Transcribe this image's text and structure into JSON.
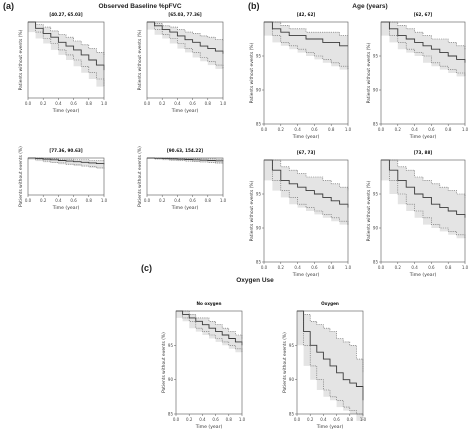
{
  "figure": {
    "panel_a_letter": "(a)",
    "panel_a_title": "Observed Baseline %pFVC",
    "panel_b_letter": "(b)",
    "panel_b_title": "Age (years)",
    "panel_c_letter": "(c)",
    "panel_c_title": "Oxygen Use"
  },
  "colors": {
    "band_fill": "#e4e4e4",
    "band_edge": "#6a6a6a",
    "curve": "#3a3a3a",
    "axis": "#555555"
  },
  "chart_data": [
    {
      "type": "line",
      "title": "[40.27, 65.03]",
      "xlabel": "Time (year)",
      "ylabel": "Patients without events (%)",
      "ylim": [
        40,
        100
      ],
      "yticks": [],
      "xticks": [
        "0.0",
        "0.2",
        "0.4",
        "0.6",
        "0.8",
        "1.0"
      ],
      "series": [
        {
          "x": [
            0,
            0.1,
            0.2,
            0.3,
            0.4,
            0.5,
            0.6,
            0.7,
            0.8,
            0.9,
            1.0
          ],
          "y": [
            100,
            95,
            91,
            88,
            84,
            81,
            78,
            74,
            70,
            66,
            62
          ]
        }
      ],
      "lower": [
        100,
        92,
        87,
        83,
        78,
        74,
        70,
        65,
        60,
        55,
        49
      ],
      "upper": [
        100,
        98,
        96,
        93,
        90,
        88,
        85,
        82,
        79,
        76,
        73
      ]
    },
    {
      "type": "line",
      "title": "[65.03, 77.36]",
      "xlabel": "Time (year)",
      "ylabel": "Patients without events (%)",
      "ylim": [
        40,
        100
      ],
      "yticks": [],
      "xticks": [
        "0.0",
        "0.2",
        "0.4",
        "0.6",
        "0.8",
        "1.0"
      ],
      "series": [
        {
          "x": [
            0,
            0.1,
            0.2,
            0.3,
            0.4,
            0.5,
            0.6,
            0.7,
            0.8,
            0.9,
            1.0
          ],
          "y": [
            100,
            97,
            94,
            92,
            89,
            86,
            84,
            81,
            79,
            77,
            75
          ]
        }
      ],
      "lower": [
        100,
        94,
        90,
        87,
        83,
        79,
        76,
        72,
        69,
        66,
        63
      ],
      "upper": [
        100,
        99,
        97,
        96,
        94,
        92,
        91,
        89,
        88,
        86,
        85
      ]
    },
    {
      "type": "line",
      "title": "[42, 62]",
      "xlabel": "Time (year)",
      "ylabel": "Patients without events (%)",
      "ylim": [
        85,
        100
      ],
      "yticks": [
        95,
        90,
        85
      ],
      "xticks": [
        "0.0",
        "0.2",
        "0.4",
        "0.6",
        "0.8",
        "1.0"
      ],
      "series": [
        {
          "x": [
            0,
            0.1,
            0.2,
            0.3,
            0.4,
            0.5,
            0.6,
            0.7,
            0.8,
            0.9,
            1.0
          ],
          "y": [
            100,
            99,
            98.5,
            98,
            98,
            97.5,
            97.5,
            97,
            97,
            96.5,
            96.5
          ]
        }
      ],
      "lower": [
        100,
        98,
        97,
        96.5,
        96,
        95.5,
        95,
        94.5,
        94,
        93.5,
        93
      ],
      "upper": [
        100,
        100,
        99.5,
        99,
        99,
        98.5,
        98.5,
        98.5,
        98.5,
        98,
        98
      ]
    },
    {
      "type": "line",
      "title": "[62, 67]",
      "xlabel": "Time (year)",
      "ylabel": "Patients without events (%)",
      "ylim": [
        85,
        100
      ],
      "yticks": [
        95,
        90,
        85
      ],
      "xticks": [
        "0.0",
        "0.2",
        "0.4",
        "0.6",
        "0.8",
        "1.0"
      ],
      "series": [
        {
          "x": [
            0,
            0.1,
            0.2,
            0.3,
            0.4,
            0.5,
            0.6,
            0.7,
            0.8,
            0.9,
            1.0
          ],
          "y": [
            100,
            99,
            98,
            97.5,
            97,
            96.5,
            96,
            95.5,
            95,
            94.5,
            94
          ]
        }
      ],
      "lower": [
        100,
        98,
        97,
        96,
        95.5,
        95,
        94,
        93.5,
        93,
        92.5,
        92
      ],
      "upper": [
        100,
        100,
        99.5,
        99,
        98.5,
        98,
        97.5,
        97.5,
        97,
        96.5,
        96
      ]
    },
    {
      "type": "line",
      "title": "[77.36, 90.63]",
      "xlabel": "Time (year)",
      "ylabel": "Patients without events (%)",
      "ylim": [
        40,
        100
      ],
      "yticks": [],
      "xticks": [
        "0.0",
        "0.2",
        "0.4",
        "0.6",
        "0.8",
        "1.0"
      ],
      "series": [
        {
          "x": [
            0,
            0.1,
            0.2,
            0.3,
            0.4,
            0.5,
            0.6,
            0.7,
            0.8,
            0.9,
            1.0
          ],
          "y": [
            100,
            99,
            98,
            97,
            96,
            95,
            94,
            93,
            92,
            91,
            90
          ]
        }
      ],
      "lower": [
        100,
        97,
        95,
        93,
        92,
        90,
        89,
        87,
        86,
        84,
        83
      ],
      "upper": [
        100,
        100,
        99,
        99,
        98,
        98,
        97,
        97,
        96,
        96,
        95
      ]
    },
    {
      "type": "line",
      "title": "[90.63, 154.22]",
      "xlabel": "Time (year)",
      "ylabel": "Patients without events (%)",
      "ylim": [
        40,
        100
      ],
      "yticks": [],
      "xticks": [
        "0.0",
        "0.2",
        "0.4",
        "0.6",
        "0.8",
        "1.0"
      ],
      "series": [
        {
          "x": [
            0,
            0.1,
            0.2,
            0.3,
            0.4,
            0.5,
            0.6,
            0.7,
            0.8,
            0.9,
            1.0
          ],
          "y": [
            100,
            99.5,
            99,
            98.5,
            98,
            97.5,
            97,
            96.5,
            96,
            95.5,
            95
          ]
        }
      ],
      "lower": [
        100,
        98.5,
        97.5,
        96.5,
        96,
        95,
        94.5,
        93.5,
        93,
        92,
        91
      ],
      "upper": [
        100,
        100,
        100,
        99.5,
        99.5,
        99,
        99,
        98.5,
        98.5,
        98,
        98
      ]
    },
    {
      "type": "line",
      "title": "[67, 73]",
      "xlabel": "Time (year)",
      "ylabel": "Patients without events (%)",
      "ylim": [
        85,
        100
      ],
      "yticks": [
        95,
        90,
        85
      ],
      "xticks": [
        "0.0",
        "0.2",
        "0.4",
        "0.6",
        "0.8",
        "1.0"
      ],
      "series": [
        {
          "x": [
            0,
            0.1,
            0.2,
            0.3,
            0.4,
            0.5,
            0.6,
            0.7,
            0.8,
            0.9,
            1.0
          ],
          "y": [
            100,
            98.5,
            97,
            96.5,
            96,
            95.5,
            95,
            94.5,
            94,
            93.5,
            93
          ]
        }
      ],
      "lower": [
        100,
        97,
        95.5,
        94.5,
        93.5,
        93,
        92.5,
        92,
        91.5,
        91,
        90.5
      ],
      "upper": [
        100,
        100,
        99,
        98.5,
        98,
        97.5,
        97.5,
        97,
        96.5,
        96,
        95.5
      ]
    },
    {
      "type": "line",
      "title": "[73, 88]",
      "xlabel": "Time (year)",
      "ylabel": "Patients without events (%)",
      "ylim": [
        85,
        100
      ],
      "yticks": [
        95,
        90,
        85
      ],
      "xticks": [
        "0.0",
        "0.2",
        "0.4",
        "0.6",
        "0.8",
        "1.0"
      ],
      "series": [
        {
          "x": [
            0,
            0.1,
            0.2,
            0.3,
            0.4,
            0.5,
            0.6,
            0.7,
            0.8,
            0.9,
            1.0
          ],
          "y": [
            100,
            98.5,
            97,
            96,
            95,
            94.5,
            93.5,
            93,
            92.5,
            92,
            91.5
          ]
        }
      ],
      "lower": [
        100,
        97,
        95,
        93.5,
        92.5,
        91.5,
        90.5,
        90,
        89.5,
        89,
        88.5
      ],
      "upper": [
        100,
        100,
        99,
        98.5,
        97.5,
        97,
        96.5,
        96,
        95.5,
        95,
        94.5
      ]
    },
    {
      "type": "line",
      "title": "No oxygen",
      "xlabel": "Time (year)",
      "ylabel": "Patients without events (%)",
      "ylim": [
        85,
        100
      ],
      "yticks": [
        95,
        90,
        85
      ],
      "xticks": [
        "0.0",
        "0.2",
        "0.4",
        "0.6",
        "0.8",
        "1.0"
      ],
      "series": [
        {
          "x": [
            0,
            0.1,
            0.2,
            0.3,
            0.4,
            0.5,
            0.6,
            0.7,
            0.8,
            0.9,
            1.0
          ],
          "y": [
            100,
            99.5,
            99,
            98.5,
            98,
            97.5,
            97,
            96.5,
            96,
            95.5,
            95
          ]
        }
      ],
      "lower": [
        100,
        99,
        98.5,
        97.5,
        97,
        96.5,
        96,
        95.5,
        95,
        94.5,
        94
      ],
      "upper": [
        100,
        100,
        99.5,
        99,
        99,
        98.5,
        98,
        97.5,
        97,
        96.5,
        96
      ]
    },
    {
      "type": "line",
      "title": "Oxygen",
      "xlabel": "Time (year)",
      "ylabel": "Patients without events (%)",
      "ylim": [
        85,
        100
      ],
      "yticks": [
        95,
        90,
        85
      ],
      "xticks": [
        "0.0",
        "0.2",
        "0.4",
        "0.6",
        "0.8",
        "1.0"
      ],
      "series": [
        {
          "x": [
            0,
            0.1,
            0.2,
            0.3,
            0.4,
            0.5,
            0.6,
            0.7,
            0.8,
            0.9,
            1.0
          ],
          "y": [
            100,
            97,
            95,
            94,
            93,
            92,
            91,
            90,
            89.5,
            89,
            87
          ]
        }
      ],
      "lower": [
        100,
        95,
        92,
        90,
        88.5,
        87.5,
        87,
        86,
        85.5,
        85,
        84
      ],
      "upper": [
        100,
        99.5,
        98.5,
        98,
        97.5,
        97,
        96,
        95.5,
        95,
        93,
        91
      ]
    }
  ]
}
